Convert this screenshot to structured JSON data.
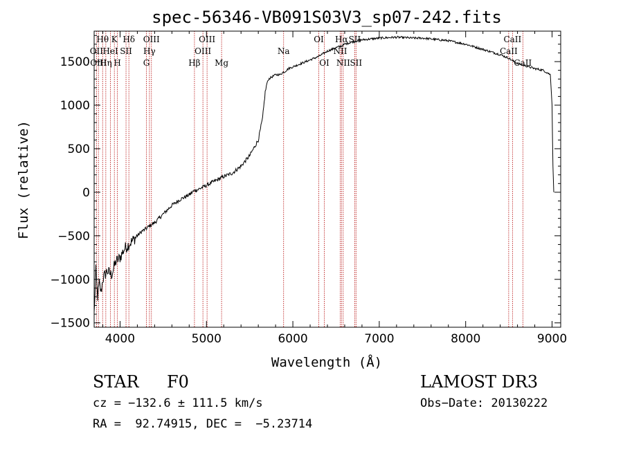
{
  "chart_data": {
    "type": "line",
    "title": "spec-56346-VB091S03V3_sp07-242.fits",
    "xlabel": "Wavelength (Å)",
    "ylabel": "Flux (relative)",
    "xlim": [
      3700,
      9100
    ],
    "ylim": [
      -1550,
      1850
    ],
    "xticks": [
      4000,
      5000,
      6000,
      7000,
      8000,
      9000
    ],
    "yticks": [
      -1500,
      -1000,
      -500,
      0,
      500,
      1000,
      1500
    ],
    "colors": {
      "spectrum": "#000000",
      "lines": "#b30000",
      "axes": "#000000"
    },
    "series": [
      {
        "name": "spectrum",
        "x": [
          3700,
          3720,
          3740,
          3760,
          3780,
          3800,
          3850,
          3900,
          3950,
          4000,
          4050,
          4100,
          4150,
          4200,
          4250,
          4300,
          4350,
          4400,
          4500,
          4600,
          4700,
          4800,
          4861,
          4900,
          5000,
          5100,
          5200,
          5300,
          5400,
          5500,
          5600,
          5650,
          5680,
          5700,
          5720,
          5750,
          5800,
          5850,
          5890,
          5900,
          5950,
          6000,
          6100,
          6200,
          6300,
          6350,
          6400,
          6500,
          6563,
          6600,
          6700,
          6800,
          6900,
          7000,
          7100,
          7200,
          7300,
          7400,
          7500,
          7600,
          7700,
          7800,
          7900,
          8000,
          8100,
          8200,
          8300,
          8400,
          8498,
          8542,
          8600,
          8662,
          8700,
          8800,
          8900,
          8980,
          9000,
          9010,
          9020
        ],
        "y": [
          -1400,
          -900,
          -1200,
          -1050,
          -1150,
          -1000,
          -900,
          -950,
          -800,
          -750,
          -650,
          -600,
          -550,
          -500,
          -450,
          -420,
          -380,
          -350,
          -250,
          -150,
          -80,
          -30,
          20,
          30,
          80,
          130,
          180,
          220,
          300,
          420,
          600,
          850,
          1150,
          1250,
          1300,
          1320,
          1350,
          1350,
          1380,
          1380,
          1420,
          1440,
          1480,
          1520,
          1560,
          1590,
          1620,
          1660,
          1680,
          1700,
          1730,
          1750,
          1760,
          1770,
          1775,
          1780,
          1775,
          1770,
          1770,
          1760,
          1750,
          1740,
          1720,
          1700,
          1670,
          1640,
          1610,
          1580,
          1540,
          1510,
          1480,
          1460,
          1450,
          1420,
          1400,
          1350,
          1000,
          300,
          0
        ]
      }
    ],
    "line_markers": [
      {
        "label": "Hθ",
        "wavelength": 3798,
        "row": 1
      },
      {
        "label": "OII",
        "wavelength": 3727,
        "row": 2
      },
      {
        "label": "Hη",
        "wavelength": 3835,
        "row": 3
      },
      {
        "label": "OIII",
        "wavelength": 3750,
        "row": 3
      },
      {
        "label": "HeI",
        "wavelength": 3889,
        "row": 2
      },
      {
        "label": "K",
        "wavelength": 3934,
        "row": 1
      },
      {
        "label": "H",
        "wavelength": 3969,
        "row": 3
      },
      {
        "label": "SII",
        "wavelength": 4069,
        "row": 2
      },
      {
        "label": "Hδ",
        "wavelength": 4102,
        "row": 1
      },
      {
        "label": "OIII",
        "wavelength": 4363,
        "row": 1
      },
      {
        "label": "Hγ",
        "wavelength": 4340,
        "row": 2
      },
      {
        "label": "G",
        "wavelength": 4305,
        "row": 3
      },
      {
        "label": "Hβ",
        "wavelength": 4861,
        "row": 3
      },
      {
        "label": "OIII",
        "wavelength": 5007,
        "row": 1
      },
      {
        "label": "OIII",
        "wavelength": 4959,
        "row": 2
      },
      {
        "label": "Mg",
        "wavelength": 5175,
        "row": 3
      },
      {
        "label": "Na",
        "wavelength": 5893,
        "row": 2
      },
      {
        "label": "OI",
        "wavelength": 6300,
        "row": 1
      },
      {
        "label": "OI",
        "wavelength": 6364,
        "row": 3
      },
      {
        "label": "Hα",
        "wavelength": 6563,
        "row": 1
      },
      {
        "label": "NII",
        "wavelength": 6548,
        "row": 2
      },
      {
        "label": "NII",
        "wavelength": 6583,
        "row": 3
      },
      {
        "label": "SII",
        "wavelength": 6716,
        "row": 1
      },
      {
        "label": "SII",
        "wavelength": 6731,
        "row": 3
      },
      {
        "label": "CaII",
        "wavelength": 8542,
        "row": 1
      },
      {
        "label": "CaII",
        "wavelength": 8498,
        "row": 2
      },
      {
        "label": "CaII",
        "wavelength": 8662,
        "row": 3
      }
    ]
  },
  "info": {
    "object_class": "STAR",
    "subclass": "F0",
    "survey": "LAMOST DR3",
    "redshift": "cz = −132.6 ± 111.5 km/s",
    "obs_date": "Obs−Date: 20130222",
    "coords": "RA =  92.74915, DEC =  −5.23714"
  }
}
